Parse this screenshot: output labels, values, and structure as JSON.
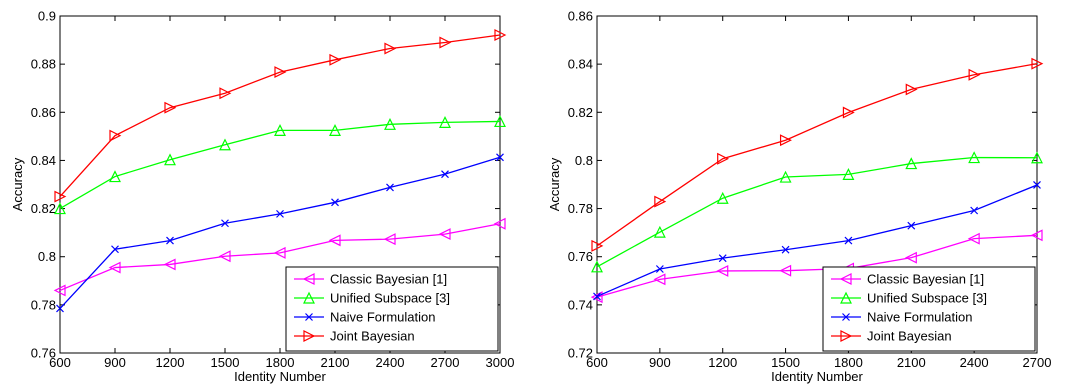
{
  "chart_data": [
    {
      "type": "line",
      "title": "",
      "xlabel": "Identity Number",
      "ylabel": "Accuracy",
      "x": [
        600,
        900,
        1200,
        1500,
        1800,
        2100,
        2400,
        2700,
        3000
      ],
      "xlim": [
        600,
        3000
      ],
      "ylim": [
        0.76,
        0.9
      ],
      "xticks": [
        600,
        900,
        1200,
        1500,
        1800,
        2100,
        2400,
        2700,
        3000
      ],
      "yticks": [
        0.76,
        0.78,
        0.8,
        0.82,
        0.84,
        0.86,
        0.88,
        0.9
      ],
      "ytick_labels": [
        "0.76",
        "0.78",
        "0.8",
        "0.82",
        "0.84",
        "0.86",
        "0.88",
        "0.9"
      ],
      "grid": false,
      "legend_position": "bottom-right",
      "series": [
        {
          "name": "Classic Bayesian [1]",
          "color": "#ff00ff",
          "marker": "triangle-left",
          "values": [
            0.786,
            0.7955,
            0.7968,
            0.8002,
            0.8016,
            0.8068,
            0.8073,
            0.8094,
            0.8137
          ]
        },
        {
          "name": "Unified Subspace [3]",
          "color": "#00ff00",
          "marker": "triangle-up",
          "values": [
            0.82,
            0.8333,
            0.8403,
            0.8465,
            0.8525,
            0.8525,
            0.855,
            0.8558,
            0.8562
          ]
        },
        {
          "name": "Naive Formulation",
          "color": "#0000ff",
          "marker": "x",
          "values": [
            0.7785,
            0.8031,
            0.8067,
            0.8139,
            0.8178,
            0.8226,
            0.8288,
            0.8343,
            0.8413
          ]
        },
        {
          "name": "Joint Bayesian",
          "color": "#ff0000",
          "marker": "triangle-right",
          "values": [
            0.825,
            0.8503,
            0.8619,
            0.8679,
            0.8767,
            0.8818,
            0.8865,
            0.889,
            0.8921
          ]
        }
      ]
    },
    {
      "type": "line",
      "title": "",
      "xlabel": "Identity Number",
      "ylabel": "Accuracy",
      "x": [
        600,
        900,
        1200,
        1500,
        1800,
        2100,
        2400,
        2700
      ],
      "xlim": [
        600,
        2700
      ],
      "ylim": [
        0.72,
        0.86
      ],
      "xticks": [
        600,
        900,
        1200,
        1500,
        1800,
        2100,
        2400,
        2700
      ],
      "yticks": [
        0.72,
        0.74,
        0.76,
        0.78,
        0.8,
        0.82,
        0.84,
        0.86
      ],
      "ytick_labels": [
        "0.72",
        "0.74",
        "0.76",
        "0.78",
        "0.8",
        "0.82",
        "0.84",
        "0.86"
      ],
      "grid": false,
      "legend_position": "bottom-right",
      "series": [
        {
          "name": "Classic Bayesian [1]",
          "color": "#ff00ff",
          "marker": "triangle-left",
          "values": [
            0.7432,
            0.7506,
            0.7541,
            0.7542,
            0.7551,
            0.7596,
            0.7675,
            0.7689
          ]
        },
        {
          "name": "Unified Subspace [3]",
          "color": "#00ff00",
          "marker": "triangle-up",
          "values": [
            0.7558,
            0.7702,
            0.7843,
            0.7931,
            0.7942,
            0.7987,
            0.8012,
            0.8011
          ]
        },
        {
          "name": "Naive Formulation",
          "color": "#0000ff",
          "marker": "x",
          "values": [
            0.7435,
            0.7549,
            0.7594,
            0.7629,
            0.7667,
            0.7729,
            0.7792,
            0.7898
          ]
        },
        {
          "name": "Joint Bayesian",
          "color": "#ff0000",
          "marker": "triangle-right",
          "values": [
            0.7645,
            0.7829,
            0.8007,
            0.8084,
            0.8199,
            0.8295,
            0.8356,
            0.8402
          ]
        }
      ]
    }
  ]
}
